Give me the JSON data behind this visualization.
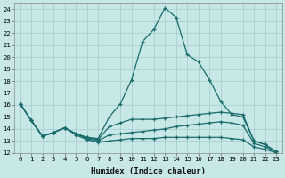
{
  "xlabel": "Humidex (Indice chaleur)",
  "background_color": "#c8e8e8",
  "grid_color": "#a8d0d0",
  "line_color": "#1a6b6b",
  "xlim": [
    -0.5,
    23.5
  ],
  "ylim": [
    12,
    24.5
  ],
  "yticks": [
    12,
    13,
    14,
    15,
    16,
    17,
    18,
    19,
    20,
    21,
    22,
    23,
    24
  ],
  "xticks": [
    0,
    1,
    2,
    3,
    4,
    5,
    6,
    7,
    8,
    9,
    10,
    11,
    12,
    13,
    14,
    15,
    16,
    17,
    18,
    19,
    20,
    21,
    22,
    23
  ],
  "series": [
    [
      16.1,
      14.7,
      13.4,
      13.7,
      14.1,
      13.6,
      13.3,
      13.2,
      15.0,
      16.1,
      18.1,
      21.3,
      22.3,
      24.1,
      23.3,
      20.2,
      19.6,
      18.1,
      16.3,
      15.2,
      15.0,
      13.0,
      12.7,
      12.1
    ],
    [
      16.1,
      14.7,
      13.4,
      13.7,
      14.1,
      13.6,
      13.3,
      13.1,
      14.2,
      14.5,
      14.8,
      14.8,
      14.8,
      14.9,
      15.0,
      15.1,
      15.2,
      15.3,
      15.4,
      15.3,
      15.2,
      13.0,
      12.7,
      12.1
    ],
    [
      16.1,
      14.7,
      13.4,
      13.7,
      14.1,
      13.6,
      13.2,
      13.0,
      13.5,
      13.6,
      13.7,
      13.8,
      13.9,
      14.0,
      14.2,
      14.3,
      14.4,
      14.5,
      14.6,
      14.5,
      14.3,
      12.8,
      12.5,
      12.1
    ],
    [
      16.1,
      14.7,
      13.4,
      13.7,
      14.1,
      13.5,
      13.1,
      12.9,
      13.0,
      13.1,
      13.2,
      13.2,
      13.2,
      13.3,
      13.3,
      13.3,
      13.3,
      13.3,
      13.3,
      13.2,
      13.1,
      12.5,
      12.3,
      12.0
    ]
  ]
}
